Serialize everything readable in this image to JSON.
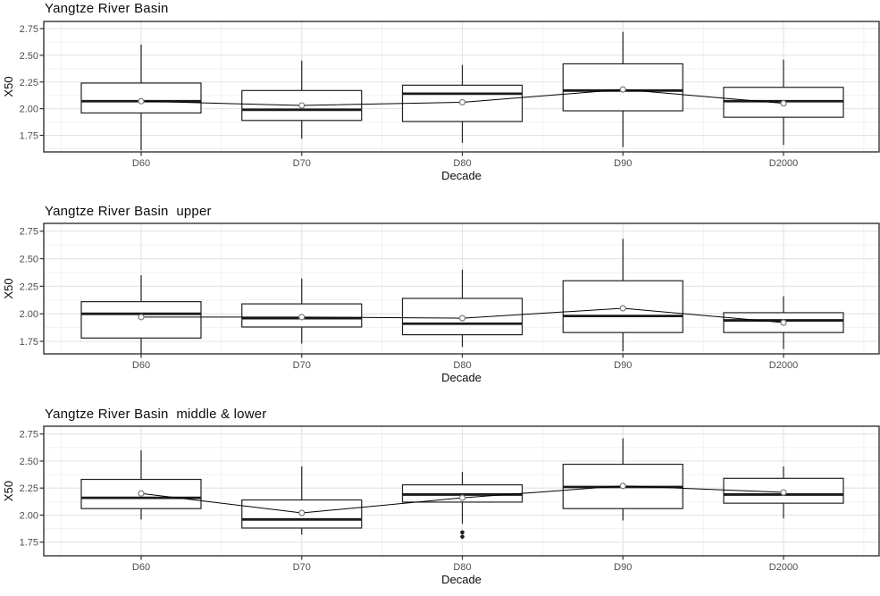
{
  "page": {
    "background": "#ffffff",
    "text_color": "#0d0d0d",
    "tick_label_color": "#4d4d4d",
    "grid_major_color": "#e3e3e3",
    "grid_minor_color": "#f1f1f1",
    "panel_border_color": "#333333",
    "box_stroke_color": "#222222",
    "median_color": "#1a1a1a",
    "mean_line_color": "#000000",
    "mean_point_stroke": "#7a7a7a",
    "outlier_color": "#1f1f1f"
  },
  "chart_data": [
    {
      "type": "boxplot",
      "title": "Yangtze River Basin",
      "xlabel": "Decade",
      "ylabel": "X50",
      "categories": [
        "D60",
        "D70",
        "D80",
        "D90",
        "D2000"
      ],
      "yticks": [
        1.75,
        2.0,
        2.25,
        2.5,
        2.75
      ],
      "ytick_labels": [
        "1.75",
        "2.00",
        "2.25",
        "2.50",
        "2.75"
      ],
      "yminor": [
        1.625,
        1.875,
        2.125,
        2.375,
        2.625
      ],
      "ylim": [
        1.6,
        2.82
      ],
      "grid": "on",
      "legend": "none",
      "mean_line": true,
      "boxes": [
        {
          "category": "D60",
          "whisker_low": 1.61,
          "q1": 1.96,
          "median": 2.07,
          "q3": 2.24,
          "whisker_high": 2.6,
          "mean": 2.07,
          "outliers": []
        },
        {
          "category": "D70",
          "whisker_low": 1.72,
          "q1": 1.89,
          "median": 1.99,
          "q3": 2.17,
          "whisker_high": 2.45,
          "mean": 2.03,
          "outliers": []
        },
        {
          "category": "D80",
          "whisker_low": 1.68,
          "q1": 1.88,
          "median": 2.14,
          "q3": 2.22,
          "whisker_high": 2.41,
          "mean": 2.06,
          "outliers": []
        },
        {
          "category": "D90",
          "whisker_low": 1.64,
          "q1": 1.98,
          "median": 2.17,
          "q3": 2.42,
          "whisker_high": 2.72,
          "mean": 2.18,
          "outliers": []
        },
        {
          "category": "D2000",
          "whisker_low": 1.66,
          "q1": 1.92,
          "median": 2.07,
          "q3": 2.2,
          "whisker_high": 2.46,
          "mean": 2.05,
          "outliers": []
        }
      ]
    },
    {
      "type": "boxplot",
      "title": "Yangtze River Basin  upper",
      "xlabel": "Decade",
      "ylabel": "X50",
      "categories": [
        "D60",
        "D70",
        "D80",
        "D90",
        "D2000"
      ],
      "yticks": [
        1.75,
        2.0,
        2.25,
        2.5,
        2.75
      ],
      "ytick_labels": [
        "1.75",
        "2.00",
        "2.25",
        "2.50",
        "2.75"
      ],
      "yminor": [
        1.625,
        1.875,
        2.125,
        2.375,
        2.625
      ],
      "ylim": [
        1.64,
        2.82
      ],
      "grid": "on",
      "legend": "none",
      "mean_line": true,
      "boxes": [
        {
          "category": "D60",
          "whisker_low": 1.64,
          "q1": 1.78,
          "median": 2.0,
          "q3": 2.11,
          "whisker_high": 2.35,
          "mean": 1.97,
          "outliers": []
        },
        {
          "category": "D70",
          "whisker_low": 1.73,
          "q1": 1.88,
          "median": 1.96,
          "q3": 2.09,
          "whisker_high": 2.32,
          "mean": 1.97,
          "outliers": []
        },
        {
          "category": "D80",
          "whisker_low": 1.7,
          "q1": 1.81,
          "median": 1.91,
          "q3": 2.14,
          "whisker_high": 2.4,
          "mean": 1.96,
          "outliers": []
        },
        {
          "category": "D90",
          "whisker_low": 1.66,
          "q1": 1.83,
          "median": 1.98,
          "q3": 2.3,
          "whisker_high": 2.68,
          "mean": 2.05,
          "outliers": []
        },
        {
          "category": "D2000",
          "whisker_low": 1.68,
          "q1": 1.83,
          "median": 1.94,
          "q3": 2.01,
          "whisker_high": 2.16,
          "mean": 1.92,
          "outliers": []
        }
      ]
    },
    {
      "type": "boxplot",
      "title": "Yangtze River Basin  middle & lower",
      "xlabel": "Decade",
      "ylabel": "X50",
      "categories": [
        "D60",
        "D70",
        "D80",
        "D90",
        "D2000"
      ],
      "yticks": [
        1.75,
        2.0,
        2.25,
        2.5,
        2.75
      ],
      "ytick_labels": [
        "1.75",
        "2.00",
        "2.25",
        "2.50",
        "2.75"
      ],
      "yminor": [
        1.625,
        1.875,
        2.125,
        2.375,
        2.625
      ],
      "ylim": [
        1.62,
        2.82
      ],
      "grid": "on",
      "legend": "none",
      "mean_line": true,
      "boxes": [
        {
          "category": "D60",
          "whisker_low": 1.96,
          "q1": 2.06,
          "median": 2.16,
          "q3": 2.33,
          "whisker_high": 2.6,
          "mean": 2.2,
          "outliers": []
        },
        {
          "category": "D70",
          "whisker_low": 1.82,
          "q1": 1.88,
          "median": 1.96,
          "q3": 2.14,
          "whisker_high": 2.45,
          "mean": 2.02,
          "outliers": []
        },
        {
          "category": "D80",
          "whisker_low": 1.92,
          "q1": 2.12,
          "median": 2.19,
          "q3": 2.28,
          "whisker_high": 2.4,
          "mean": 2.16,
          "outliers": [
            1.84,
            1.8
          ]
        },
        {
          "category": "D90",
          "whisker_low": 1.95,
          "q1": 2.06,
          "median": 2.26,
          "q3": 2.47,
          "whisker_high": 2.71,
          "mean": 2.27,
          "outliers": []
        },
        {
          "category": "D2000",
          "whisker_low": 1.97,
          "q1": 2.11,
          "median": 2.19,
          "q3": 2.34,
          "whisker_high": 2.45,
          "mean": 2.21,
          "outliers": []
        }
      ]
    }
  ]
}
